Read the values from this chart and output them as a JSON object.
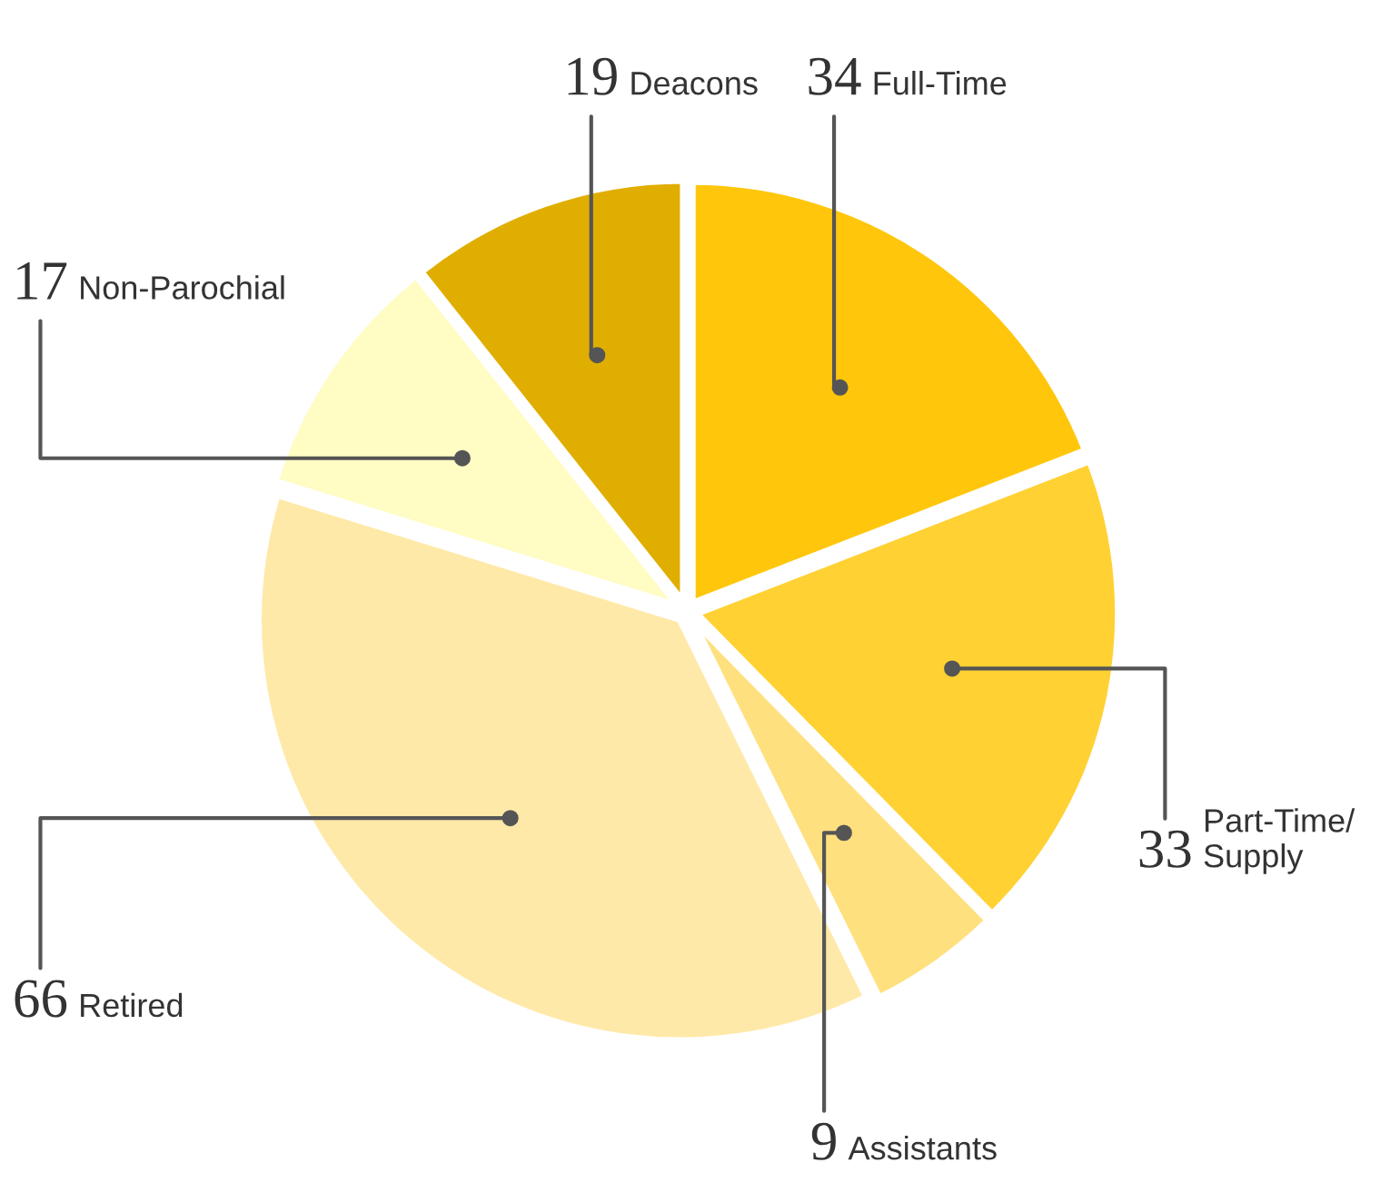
{
  "chart_data": {
    "type": "pie",
    "categories": [
      "Full-Time",
      "Part-Time/\nSupply",
      "Assistants",
      "Retired",
      "Non-Parochial",
      "Deacons"
    ],
    "values": [
      34,
      33,
      9,
      66,
      17,
      19
    ],
    "colors": [
      "#ffc60b",
      "#ffd133",
      "#ffe07f",
      "#ffe9a8",
      "#fffcc4",
      "#e0ae00"
    ],
    "data_labels": true,
    "legend": false
  }
}
